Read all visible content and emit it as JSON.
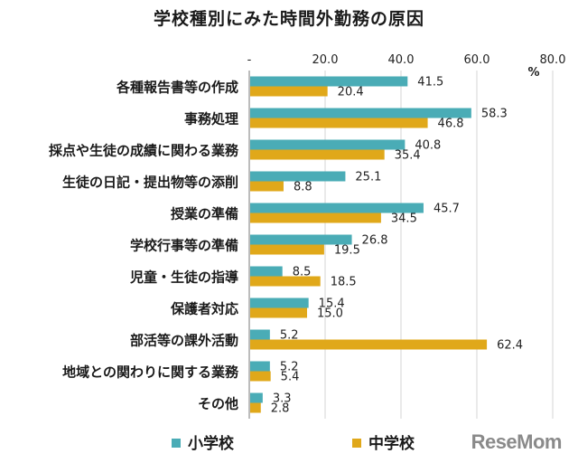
{
  "chart_data": {
    "type": "bar",
    "orientation": "horizontal",
    "title": "学校種別にみた時間外勤務の原因",
    "unit": "%",
    "xlim": [
      0,
      80
    ],
    "ticks": [
      "-",
      "20.0",
      "40.0",
      "60.0",
      "80.0"
    ],
    "grid": true,
    "legend": "bottom",
    "categories": [
      "各種報告書等の作成",
      "事務処理",
      "採点や生徒の成績に関わる業務",
      "生徒の日記・提出物等の添削",
      "授業の準備",
      "学校行事等の準備",
      "児童・生徒の指導",
      "保護者対応",
      "部活等の課外活動",
      "地域との関わりに関する業務",
      "その他"
    ],
    "series": [
      {
        "name": "小学校",
        "color": "#4aacb6",
        "values": [
          41.5,
          58.3,
          40.8,
          25.1,
          45.7,
          26.8,
          8.5,
          15.4,
          5.2,
          5.2,
          3.3
        ]
      },
      {
        "name": "中学校",
        "color": "#e0a81a",
        "values": [
          20.4,
          46.8,
          35.4,
          8.8,
          34.5,
          19.5,
          18.5,
          15.0,
          62.4,
          5.4,
          2.8
        ]
      }
    ]
  },
  "watermark": "ReseMom"
}
